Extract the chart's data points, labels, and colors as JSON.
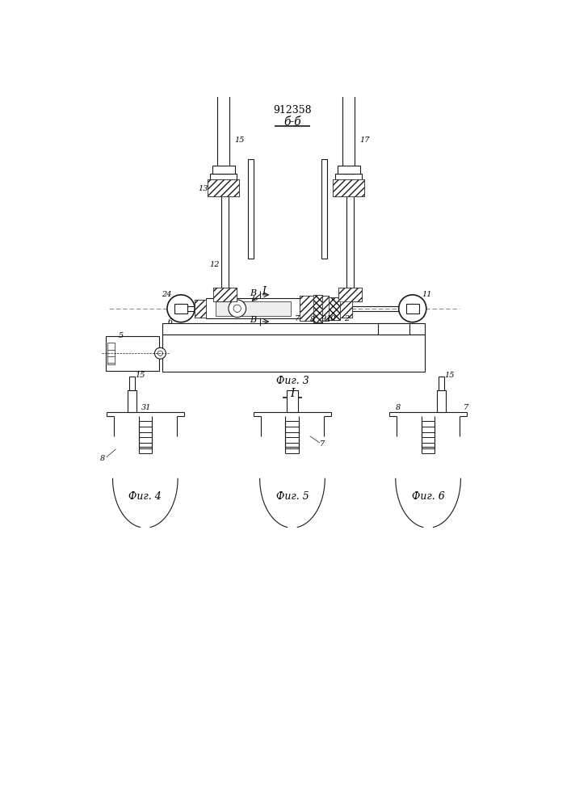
{
  "title": "912358",
  "section_label": "б-б",
  "fig3_label": "Фиг. 3",
  "fig4_label": "Фиг. 4",
  "fig5_label": "Фиг. 5",
  "fig6_label": "Фиг. 6",
  "section_I_label": "I",
  "bg_color": "#ffffff",
  "line_color": "#1a1a1a",
  "linewidth": 0.8,
  "thin_lw": 0.5,
  "thick_lw": 1.2
}
